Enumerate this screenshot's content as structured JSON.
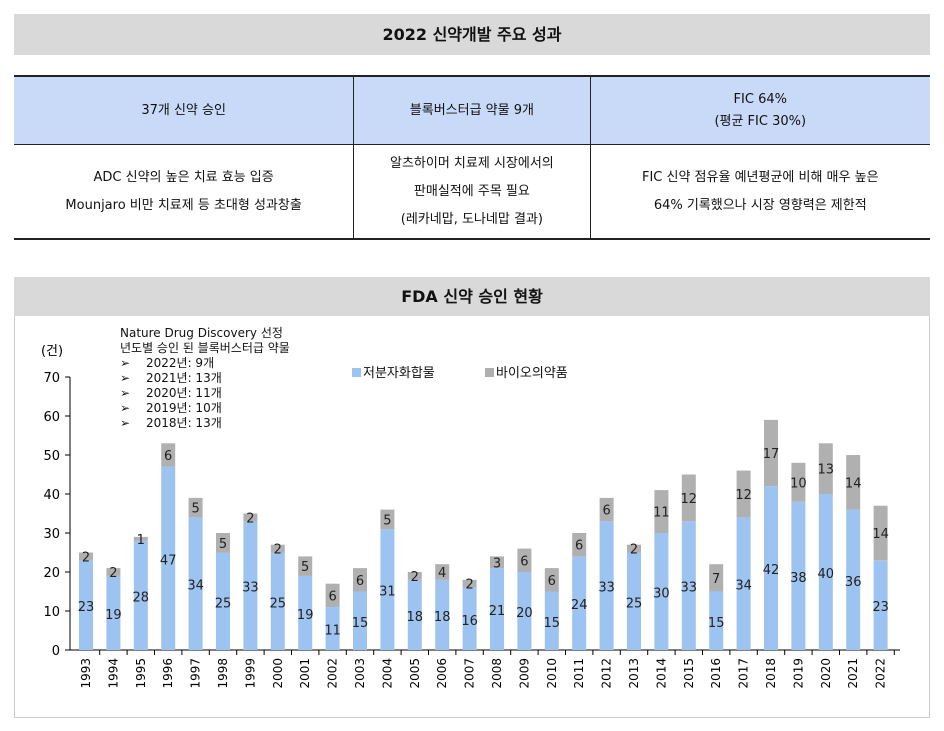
{
  "summary": {
    "title": "2022 신약개발 주요 성과",
    "headers": [
      "37개 신약 승인",
      "블록버스터급 약물 9개",
      [
        "FIC 64%",
        "(평균 FIC 30%)"
      ]
    ],
    "details": [
      [
        "ADC 신약의 높은 치료 효능 입증",
        "Mounjaro 비만 치료제 등 초대형 성과창출"
      ],
      [
        "알츠하이머 치료제 시장에서의",
        "판매실적에 주목 필요",
        "(레카네맙, 도나네맙 결과)"
      ],
      [
        "FIC 신약 점유율 예년평균에 비해 매우 높은",
        "64% 기록했으나 시장 영향력은 제한적"
      ]
    ]
  },
  "chart_section": {
    "title": "FDA 신약 승인 현황",
    "note": {
      "title1": "Nature Drug Discovery 선정",
      "title2": "년도별 승인 된 블록버스터급 약물",
      "bullet": "➢",
      "items": [
        "2022년: 9개",
        "2021년: 13개",
        "2020년: 11개",
        "2019년: 10개",
        "2018년: 13개"
      ]
    }
  },
  "chart_data": {
    "type": "bar",
    "stacked": true,
    "ylabel": "(건)",
    "ylim": [
      0,
      70
    ],
    "yticks": [
      0,
      10,
      20,
      30,
      40,
      50,
      60,
      70
    ],
    "grid": false,
    "legend": "top",
    "categories": [
      "1993",
      "1994",
      "1995",
      "1996",
      "1997",
      "1998",
      "1999",
      "2000",
      "2001",
      "2002",
      "2003",
      "2004",
      "2005",
      "2006",
      "2007",
      "2008",
      "2009",
      "2010",
      "2011",
      "2012",
      "2013",
      "2014",
      "2015",
      "2016",
      "2017",
      "2018",
      "2019",
      "2020",
      "2021",
      "2022"
    ],
    "series": [
      {
        "name": "저분자화합물",
        "color": "#9dc3f0",
        "values": [
          23,
          19,
          28,
          47,
          34,
          25,
          33,
          25,
          19,
          11,
          15,
          31,
          18,
          18,
          16,
          21,
          20,
          15,
          24,
          33,
          25,
          30,
          33,
          15,
          34,
          42,
          38,
          40,
          36,
          23
        ]
      },
      {
        "name": "바이오의약품",
        "color": "#b0b0b0",
        "values": [
          2,
          2,
          1,
          6,
          5,
          5,
          2,
          2,
          5,
          6,
          6,
          5,
          2,
          4,
          2,
          3,
          6,
          6,
          6,
          6,
          2,
          11,
          12,
          7,
          12,
          17,
          10,
          13,
          14,
          14
        ]
      }
    ]
  }
}
